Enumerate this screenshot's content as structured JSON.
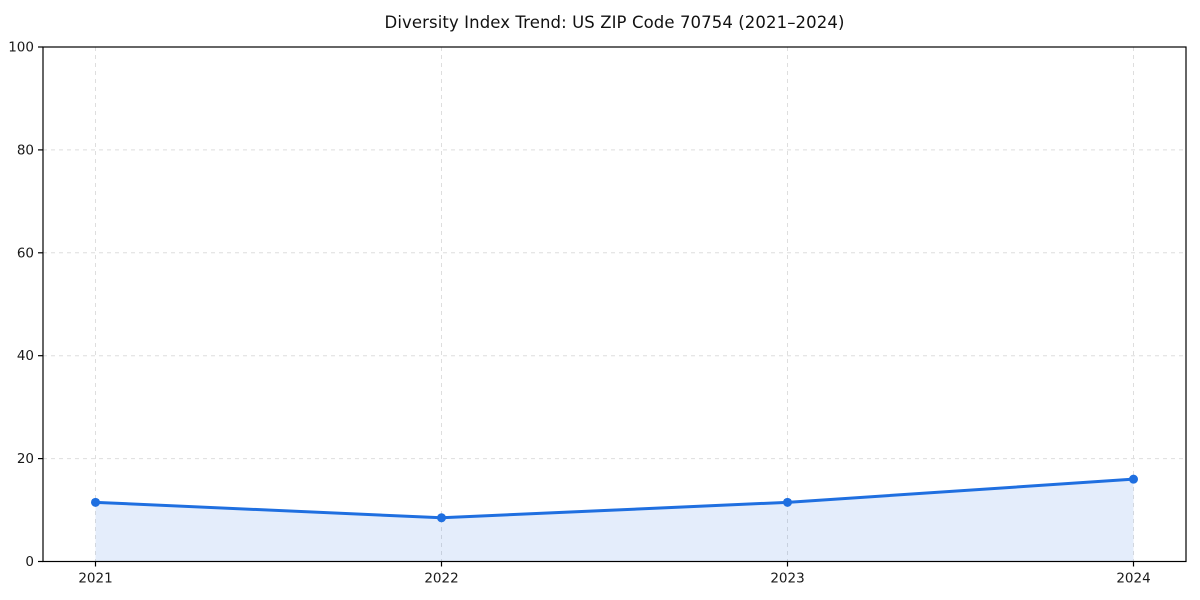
{
  "chart_data": {
    "type": "area",
    "title": "Diversity Index Trend: US ZIP Code 70754 (2021–2024)",
    "xlabel": "",
    "ylabel": "",
    "categories": [
      "2021",
      "2022",
      "2023",
      "2024"
    ],
    "series": [
      {
        "name": "Diversity Index",
        "values": [
          11.5,
          8.5,
          11.5,
          16.0
        ]
      }
    ],
    "ylim": [
      0,
      100
    ],
    "yticks": [
      0,
      20,
      40,
      60,
      80,
      100
    ],
    "grid": true,
    "grid_style": "dashed",
    "legend_position": "none",
    "line_color": "#1f6fe0",
    "marker_color": "#1f6fe0",
    "fill_color": "#1f6fe0",
    "fill_opacity": 0.12,
    "grid_color": "#dedede",
    "spine_color": "#000000",
    "tick_label_color": "#1a1a1a"
  }
}
